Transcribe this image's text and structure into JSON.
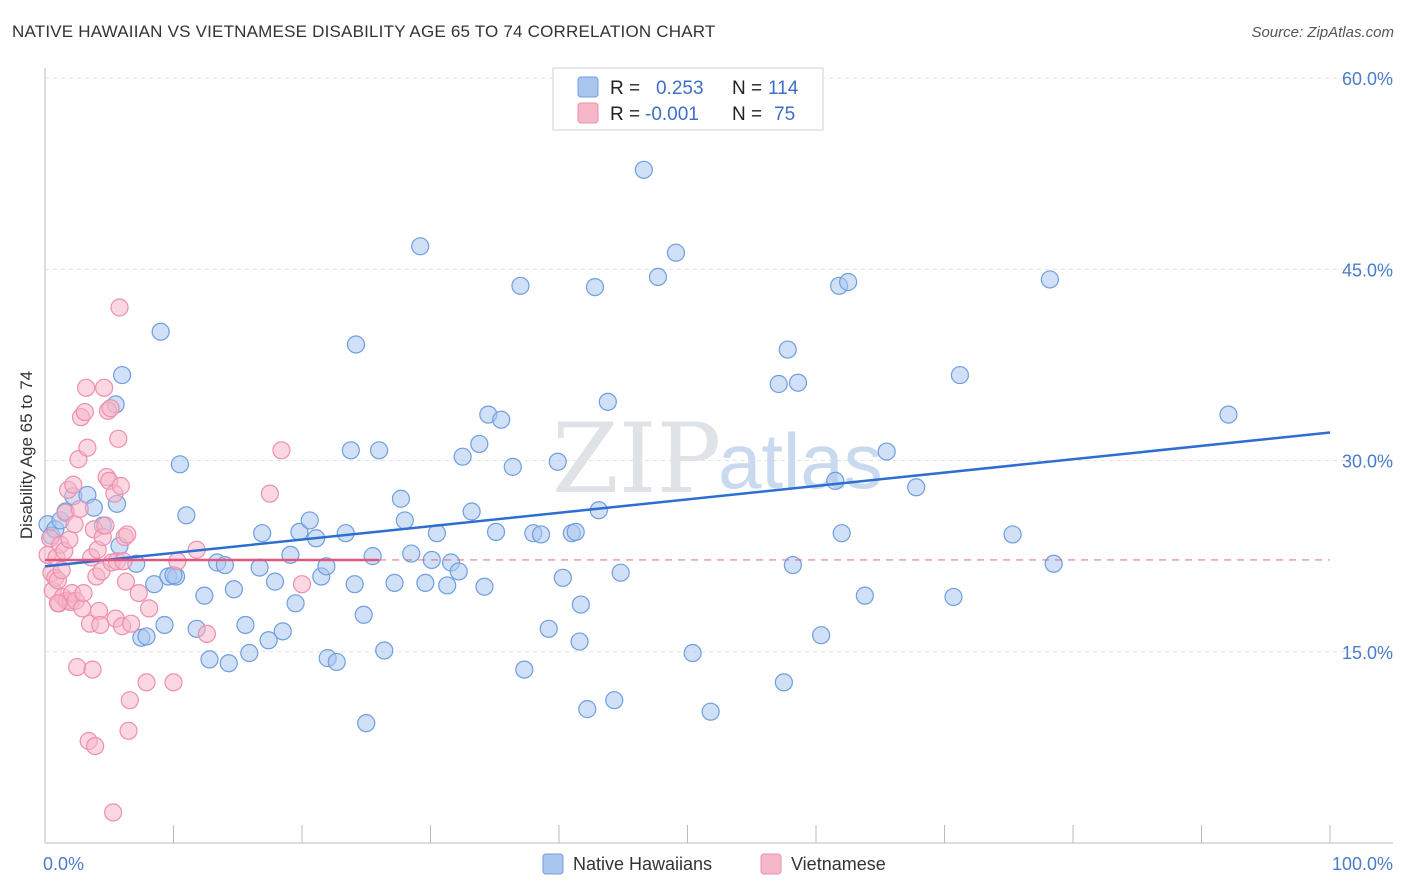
{
  "title": "NATIVE HAWAIIAN VS VIETNAMESE DISABILITY AGE 65 TO 74 CORRELATION CHART",
  "source": "Source: ZipAtlas.com",
  "watermark": {
    "zip": "ZIP",
    "atlas": "atlas"
  },
  "legend": {
    "rows": [
      {
        "r_label": "R =",
        "r_value": "0.253",
        "n_label": "N =",
        "n_value": "114",
        "color": "#a9c6ef"
      },
      {
        "r_label": "R =",
        "r_value": "-0.001",
        "n_label": "N =",
        "n_value": "75",
        "color": "#f6b7c9"
      }
    ]
  },
  "chart_data": {
    "type": "scatter",
    "title": "NATIVE HAWAIIAN VS VIETNAMESE DISABILITY AGE 65 TO 74 CORRELATION CHART",
    "ylabel": "Disability Age 65 to 74",
    "xlabel": "",
    "xlim": [
      0,
      100
    ],
    "ylim": [
      0,
      60
    ],
    "x_tick_labels": [
      "0.0%",
      "100.0%"
    ],
    "y_ticks": [
      15,
      30,
      45,
      60
    ],
    "y_tick_labels": [
      "15.0%",
      "30.0%",
      "45.0%",
      "60.0%"
    ],
    "series": [
      {
        "name": "Native Hawaiians",
        "color": "#6f9ee0",
        "fill": "#a9c6ef",
        "trend": {
          "x0": 0,
          "y0": 21.7,
          "x1": 100,
          "y1": 32.2,
          "color": "#2c6fd1"
        },
        "points": [
          [
            0.2,
            25.0
          ],
          [
            0.5,
            24.1
          ],
          [
            0.8,
            24.6
          ],
          [
            1.2,
            25.3
          ],
          [
            1.6,
            26.0
          ],
          [
            2.2,
            27.2
          ],
          [
            3.3,
            27.3
          ],
          [
            3.8,
            26.3
          ],
          [
            4.5,
            24.9
          ],
          [
            5.5,
            34.4
          ],
          [
            5.6,
            26.6
          ],
          [
            5.8,
            23.3
          ],
          [
            6.0,
            36.7
          ],
          [
            7.1,
            21.9
          ],
          [
            7.5,
            16.1
          ],
          [
            7.9,
            16.2
          ],
          [
            8.5,
            20.3
          ],
          [
            9.0,
            40.1
          ],
          [
            9.3,
            17.1
          ],
          [
            9.6,
            20.9
          ],
          [
            10.2,
            20.9
          ],
          [
            10.5,
            29.7
          ],
          [
            11.0,
            25.7
          ],
          [
            11.8,
            16.8
          ],
          [
            12.4,
            19.4
          ],
          [
            12.8,
            14.4
          ],
          [
            13.4,
            22.0
          ],
          [
            14.0,
            21.8
          ],
          [
            14.3,
            14.1
          ],
          [
            14.7,
            19.9
          ],
          [
            15.6,
            17.1
          ],
          [
            15.9,
            14.9
          ],
          [
            16.7,
            21.6
          ],
          [
            16.9,
            24.3
          ],
          [
            17.4,
            15.9
          ],
          [
            17.9,
            20.5
          ],
          [
            18.5,
            16.6
          ],
          [
            19.1,
            22.6
          ],
          [
            19.5,
            18.8
          ],
          [
            19.8,
            24.4
          ],
          [
            20.6,
            25.3
          ],
          [
            21.1,
            23.9
          ],
          [
            21.5,
            20.9
          ],
          [
            21.9,
            21.7
          ],
          [
            22.0,
            14.5
          ],
          [
            22.7,
            14.2
          ],
          [
            23.4,
            24.3
          ],
          [
            23.8,
            30.8
          ],
          [
            24.1,
            20.3
          ],
          [
            24.2,
            39.1
          ],
          [
            24.8,
            17.9
          ],
          [
            25.0,
            9.4
          ],
          [
            25.5,
            22.5
          ],
          [
            26.0,
            30.8
          ],
          [
            26.4,
            15.1
          ],
          [
            27.2,
            20.4
          ],
          [
            27.7,
            27.0
          ],
          [
            28.0,
            25.3
          ],
          [
            28.5,
            22.7
          ],
          [
            29.2,
            46.8
          ],
          [
            29.6,
            20.4
          ],
          [
            30.1,
            22.2
          ],
          [
            30.5,
            24.3
          ],
          [
            31.3,
            20.2
          ],
          [
            31.6,
            22.0
          ],
          [
            32.2,
            21.3
          ],
          [
            32.5,
            30.3
          ],
          [
            33.2,
            26.0
          ],
          [
            33.8,
            31.3
          ],
          [
            34.2,
            20.1
          ],
          [
            34.5,
            33.6
          ],
          [
            35.1,
            24.4
          ],
          [
            35.5,
            33.2
          ],
          [
            36.4,
            29.5
          ],
          [
            37.0,
            43.7
          ],
          [
            37.3,
            13.6
          ],
          [
            38.0,
            24.3
          ],
          [
            38.6,
            24.2
          ],
          [
            39.2,
            16.8
          ],
          [
            39.9,
            29.9
          ],
          [
            40.3,
            20.8
          ],
          [
            41.0,
            24.3
          ],
          [
            41.3,
            24.4
          ],
          [
            41.6,
            15.8
          ],
          [
            41.7,
            18.7
          ],
          [
            42.2,
            10.5
          ],
          [
            42.8,
            43.6
          ],
          [
            43.1,
            26.1
          ],
          [
            43.8,
            34.6
          ],
          [
            44.3,
            11.2
          ],
          [
            44.8,
            21.2
          ],
          [
            46.6,
            52.8
          ],
          [
            47.7,
            44.4
          ],
          [
            49.1,
            46.3
          ],
          [
            50.4,
            14.9
          ],
          [
            51.8,
            10.3
          ],
          [
            57.1,
            36.0
          ],
          [
            57.5,
            12.6
          ],
          [
            57.8,
            38.7
          ],
          [
            58.2,
            21.8
          ],
          [
            58.6,
            36.1
          ],
          [
            60.4,
            16.3
          ],
          [
            61.5,
            28.4
          ],
          [
            61.8,
            43.7
          ],
          [
            62.0,
            24.3
          ],
          [
            62.5,
            44.0
          ],
          [
            63.8,
            19.4
          ],
          [
            65.5,
            30.7
          ],
          [
            67.8,
            27.9
          ],
          [
            70.7,
            19.3
          ],
          [
            71.2,
            36.7
          ],
          [
            75.3,
            24.2
          ],
          [
            78.2,
            44.2
          ],
          [
            78.5,
            21.9
          ],
          [
            92.1,
            33.6
          ],
          [
            10.0,
            21.0
          ]
        ]
      },
      {
        "name": "Vietnamese",
        "color": "#ee8fae",
        "fill": "#f6b7c9",
        "trend": {
          "x0": 0,
          "y0": 22.2,
          "x1": 26,
          "y1": 22.2,
          "color": "#e0567e",
          "dash_x1": 100
        },
        "points": [
          [
            0.2,
            22.6
          ],
          [
            0.4,
            23.9
          ],
          [
            0.5,
            21.2
          ],
          [
            0.6,
            19.8
          ],
          [
            0.8,
            20.8
          ],
          [
            0.9,
            22.4
          ],
          [
            1.0,
            20.6
          ],
          [
            1.1,
            18.8
          ],
          [
            1.2,
            23.4
          ],
          [
            1.3,
            21.4
          ],
          [
            1.4,
            19.3
          ],
          [
            1.5,
            22.9
          ],
          [
            1.6,
            25.9
          ],
          [
            1.7,
            19.0
          ],
          [
            1.8,
            27.7
          ],
          [
            1.9,
            23.8
          ],
          [
            2.0,
            18.9
          ],
          [
            2.1,
            19.6
          ],
          [
            2.2,
            28.1
          ],
          [
            2.3,
            25.0
          ],
          [
            2.4,
            19.0
          ],
          [
            2.5,
            13.8
          ],
          [
            2.6,
            30.1
          ],
          [
            2.7,
            26.2
          ],
          [
            2.8,
            33.4
          ],
          [
            2.9,
            18.4
          ],
          [
            3.0,
            19.6
          ],
          [
            3.1,
            33.8
          ],
          [
            3.2,
            35.7
          ],
          [
            3.3,
            31.0
          ],
          [
            3.4,
            8.0
          ],
          [
            3.5,
            17.2
          ],
          [
            3.6,
            22.4
          ],
          [
            3.7,
            13.6
          ],
          [
            3.8,
            24.6
          ],
          [
            3.9,
            7.6
          ],
          [
            4.0,
            20.9
          ],
          [
            4.1,
            23.0
          ],
          [
            4.2,
            18.2
          ],
          [
            4.3,
            17.1
          ],
          [
            4.4,
            21.3
          ],
          [
            4.5,
            24.0
          ],
          [
            4.6,
            35.7
          ],
          [
            4.7,
            24.9
          ],
          [
            4.8,
            28.7
          ],
          [
            4.9,
            33.9
          ],
          [
            5.0,
            28.4
          ],
          [
            5.1,
            34.1
          ],
          [
            5.2,
            22.0
          ],
          [
            5.3,
            2.4
          ],
          [
            5.4,
            27.4
          ],
          [
            5.5,
            17.6
          ],
          [
            5.6,
            22.1
          ],
          [
            5.7,
            31.7
          ],
          [
            5.8,
            42.0
          ],
          [
            5.9,
            28.0
          ],
          [
            6.0,
            17.0
          ],
          [
            6.1,
            22.1
          ],
          [
            6.2,
            24.0
          ],
          [
            6.3,
            20.5
          ],
          [
            6.4,
            24.2
          ],
          [
            6.5,
            8.8
          ],
          [
            6.6,
            11.2
          ],
          [
            6.7,
            17.2
          ],
          [
            7.3,
            19.6
          ],
          [
            7.9,
            12.6
          ],
          [
            8.1,
            18.4
          ],
          [
            10.0,
            12.6
          ],
          [
            10.3,
            22.1
          ],
          [
            11.8,
            23.0
          ],
          [
            12.6,
            16.4
          ],
          [
            17.5,
            27.4
          ],
          [
            18.4,
            30.8
          ],
          [
            20.0,
            20.3
          ],
          [
            1.0,
            18.8
          ]
        ]
      }
    ]
  },
  "bottom_legend": [
    {
      "label": "Native Hawaiians",
      "color": "#a9c6ef",
      "stroke": "#6f9ee0"
    },
    {
      "label": "Vietnamese",
      "color": "#f6b7c9",
      "stroke": "#ee8fae"
    }
  ]
}
